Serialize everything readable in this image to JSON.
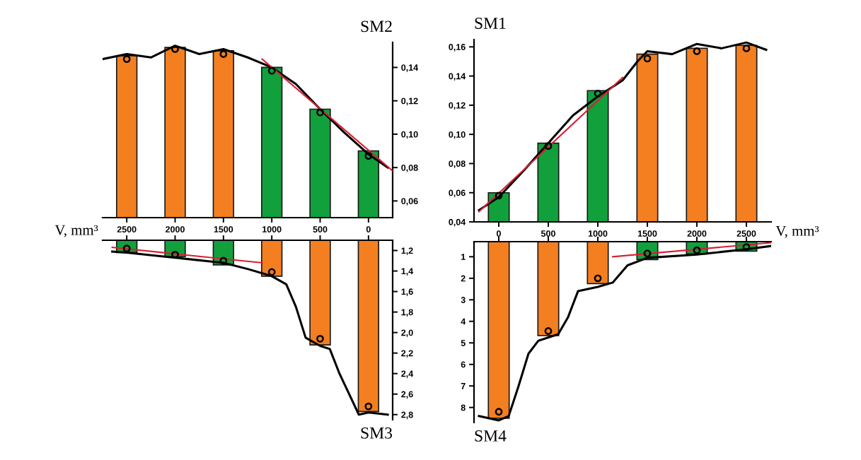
{
  "chart_data": [
    {
      "type": "bar",
      "title": "SM2",
      "xlabel": "V, mm³",
      "xlim": [
        2750,
        -250
      ],
      "xticks": [
        0,
        500,
        1000,
        1500,
        2000,
        2500
      ],
      "ylim": [
        0.05,
        0.155
      ],
      "yticks": [
        {
          "value": 0.06,
          "label": "0,06"
        },
        {
          "value": 0.08,
          "label": "0,08"
        },
        {
          "value": 0.1,
          "label": "0,10"
        },
        {
          "value": 0.12,
          "label": "0,12"
        },
        {
          "value": 0.14,
          "label": "0,14"
        }
      ],
      "x": [
        2500,
        2000,
        1500,
        1000,
        500,
        0
      ],
      "series": [
        {
          "colors": [
            "#f47f20",
            "#f47f20",
            "#f47f20",
            "#12a03c",
            "#12a03c",
            "#12a03c"
          ],
          "values": [
            0.147,
            0.152,
            0.15,
            0.14,
            0.115,
            0.09
          ]
        },
        {
          "type": "scatter",
          "marker": "circle",
          "color": "#000000",
          "values": [
            0.145,
            0.151,
            0.148,
            0.138,
            0.113,
            0.087
          ]
        },
        {
          "type": "line",
          "color": "#000000",
          "x": [
            2750,
            2500,
            2250,
            2000,
            1750,
            1500,
            1250,
            1000,
            750,
            500,
            250,
            0,
            -200
          ],
          "values": [
            0.145,
            0.148,
            0.146,
            0.153,
            0.148,
            0.151,
            0.146,
            0.14,
            0.13,
            0.115,
            0.101,
            0.088,
            0.08
          ]
        },
        {
          "type": "line",
          "color": "#d62030",
          "x": [
            1100,
            -250
          ],
          "values": [
            0.145,
            0.078
          ]
        }
      ]
    },
    {
      "type": "bar",
      "title": "SM1",
      "xlabel": "V, mm³",
      "xlim": [
        -250,
        2750
      ],
      "xticks": [
        0,
        500,
        1000,
        1500,
        2000,
        2500
      ],
      "ylim": [
        0.04,
        0.165
      ],
      "yticks": [
        {
          "value": 0.04,
          "label": "0,04"
        },
        {
          "value": 0.06,
          "label": "0,06"
        },
        {
          "value": 0.08,
          "label": "0,08"
        },
        {
          "value": 0.1,
          "label": "0,10"
        },
        {
          "value": 0.12,
          "label": "0,12"
        },
        {
          "value": 0.14,
          "label": "0,14"
        },
        {
          "value": 0.16,
          "label": "0,16"
        }
      ],
      "x": [
        0,
        500,
        1000,
        1500,
        2000,
        2500
      ],
      "series": [
        {
          "colors": [
            "#12a03c",
            "#12a03c",
            "#12a03c",
            "#f47f20",
            "#f47f20",
            "#f47f20"
          ],
          "values": [
            0.06,
            0.094,
            0.13,
            0.155,
            0.159,
            0.161
          ]
        },
        {
          "type": "scatter",
          "marker": "circle",
          "color": "#000000",
          "values": [
            0.058,
            0.092,
            0.128,
            0.152,
            0.157,
            0.159
          ]
        },
        {
          "type": "line",
          "color": "#000000",
          "x": [
            -200,
            0,
            250,
            500,
            750,
            1000,
            1250,
            1400,
            1500,
            1750,
            2000,
            2250,
            2500,
            2700
          ],
          "values": [
            0.048,
            0.057,
            0.075,
            0.094,
            0.113,
            0.126,
            0.137,
            0.15,
            0.157,
            0.155,
            0.162,
            0.159,
            0.163,
            0.158
          ]
        },
        {
          "type": "line",
          "color": "#d62030",
          "x": [
            -200,
            1250
          ],
          "values": [
            0.047,
            0.139
          ]
        }
      ]
    },
    {
      "type": "bar",
      "title": "SM3",
      "tick_labels": "y",
      "xlim": [
        2750,
        -250
      ],
      "xticks": [
        0,
        500,
        1000,
        1500,
        2000,
        2500
      ],
      "ylim": [
        2.85,
        1.1
      ],
      "yticks": [
        {
          "value": 1.2,
          "label": "1,2"
        },
        {
          "value": 1.4,
          "label": "1,4"
        },
        {
          "value": 1.6,
          "label": "1,6"
        },
        {
          "value": 1.8,
          "label": "1,8"
        },
        {
          "value": 2.0,
          "label": "2,0"
        },
        {
          "value": 2.2,
          "label": "2,2"
        },
        {
          "value": 2.4,
          "label": "2,4"
        },
        {
          "value": 2.6,
          "label": "2,6"
        },
        {
          "value": 2.8,
          "label": "2,8"
        }
      ],
      "x": [
        2500,
        2000,
        1500,
        1000,
        500,
        0
      ],
      "series": [
        {
          "colors": [
            "#12a03c",
            "#12a03c",
            "#12a03c",
            "#f47f20",
            "#f47f20",
            "#f47f20"
          ],
          "values": [
            1.22,
            1.26,
            1.34,
            1.45,
            2.12,
            2.77
          ]
        },
        {
          "type": "scatter",
          "marker": "circle",
          "color": "#000000",
          "values": [
            1.18,
            1.24,
            1.3,
            1.41,
            2.06,
            2.72
          ]
        },
        {
          "type": "line",
          "color": "#000000",
          "x": [
            2650,
            2500,
            2000,
            1500,
            1250,
            1000,
            850,
            750,
            650,
            500,
            400,
            300,
            200,
            100,
            0,
            -100,
            -200
          ],
          "values": [
            1.21,
            1.22,
            1.27,
            1.32,
            1.38,
            1.45,
            1.53,
            1.75,
            2.05,
            2.13,
            2.16,
            2.4,
            2.6,
            2.8,
            2.78,
            2.79,
            2.8
          ]
        },
        {
          "type": "line",
          "color": "#d62030",
          "x": [
            2650,
            1100
          ],
          "values": [
            1.17,
            1.32
          ]
        }
      ]
    },
    {
      "type": "bar",
      "title": "SM4",
      "tick_labels": "y",
      "xlim": [
        -250,
        2750
      ],
      "xticks": [
        0,
        500,
        1000,
        1500,
        2000,
        2500
      ],
      "ylim": [
        8.7,
        0.3
      ],
      "yticks": [
        1,
        2,
        3,
        4,
        5,
        6,
        7,
        8
      ],
      "x": [
        0,
        500,
        1000,
        1500,
        2000,
        2500
      ],
      "series": [
        {
          "colors": [
            "#f47f20",
            "#f47f20",
            "#f47f20",
            "#12a03c",
            "#12a03c",
            "#12a03c"
          ],
          "values": [
            8.5,
            4.66,
            2.25,
            1.13,
            0.87,
            0.74
          ]
        },
        {
          "type": "scatter",
          "marker": "circle",
          "color": "#000000",
          "values": [
            8.2,
            4.45,
            2.0,
            0.85,
            0.7,
            0.55
          ]
        },
        {
          "type": "line",
          "color": "#000000",
          "x": [
            -200,
            0,
            100,
            200,
            300,
            400,
            600,
            700,
            800,
            1000,
            1150,
            1300,
            1500,
            2000,
            2500,
            2750
          ],
          "values": [
            8.4,
            8.6,
            8.4,
            7.0,
            5.5,
            4.9,
            4.6,
            3.8,
            2.6,
            2.4,
            2.2,
            1.4,
            1.05,
            0.9,
            0.65,
            0.5
          ]
        },
        {
          "type": "line",
          "color": "#d62030",
          "x": [
            1150,
            2750
          ],
          "values": [
            1.0,
            0.35
          ]
        }
      ]
    }
  ]
}
